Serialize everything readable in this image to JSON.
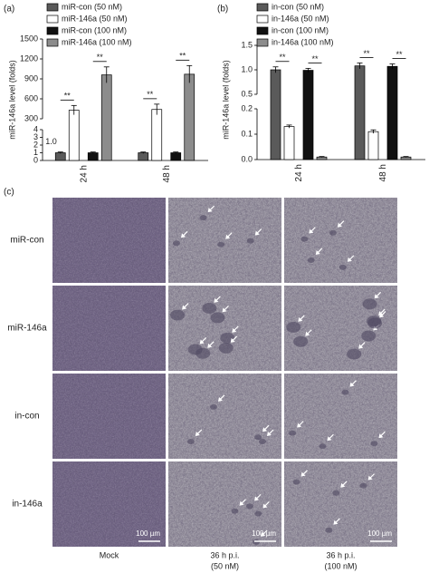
{
  "chart_data": [
    {
      "type": "bar",
      "panel_label": "(a)",
      "ylabel": "miR-146a level (folds)",
      "categories": [
        "24 h",
        "48 h"
      ],
      "y_segments": [
        {
          "ylim": [
            0,
            4
          ],
          "yticks": [
            0,
            1,
            2,
            3,
            4
          ]
        },
        {
          "ylim": [
            300,
            1500
          ],
          "yticks": [
            300,
            600,
            900,
            1200,
            1500
          ]
        }
      ],
      "series": [
        {
          "name": "miR-con (50 nM)",
          "color": "#5a5a5a",
          "values": [
            1,
            1
          ],
          "errors": [
            0.1,
            0.1
          ],
          "value_labels": [
            "1.0",
            null
          ]
        },
        {
          "name": "miR-146a (50 nM)",
          "color": "#ffffff",
          "values": [
            430,
            440
          ],
          "errors": [
            70,
            80
          ]
        },
        {
          "name": "miR-con (100 nM)",
          "color": "#111111",
          "values": [
            1,
            1
          ],
          "errors": [
            0.1,
            0.1
          ]
        },
        {
          "name": "miR-146a (100 nM)",
          "color": "#8c8c8c",
          "values": [
            960,
            970
          ],
          "errors": [
            120,
            130
          ]
        }
      ],
      "significance": [
        [
          "**",
          "**"
        ],
        [
          "**",
          "**"
        ]
      ],
      "legend": "top-left"
    },
    {
      "type": "bar",
      "panel_label": "(b)",
      "ylabel": "miR-146a level (folds)",
      "categories": [
        "24 h",
        "48 h"
      ],
      "y_segments": [
        {
          "ylim": [
            0,
            0.2
          ],
          "yticks": [
            {
              "value": 0,
              "label": "0.0"
            },
            0.1,
            0.2
          ]
        },
        {
          "ylim": [
            0.5,
            1.5
          ],
          "yticks": [
            0.5,
            {
              "value": 1,
              "label": "1.0"
            },
            1.5
          ]
        }
      ],
      "series": [
        {
          "name": "in-con (50 nM)",
          "color": "#5a5a5a",
          "values": [
            1.0,
            1.08
          ],
          "errors": [
            0.06,
            0.06
          ]
        },
        {
          "name": "in-146a (50 nM)",
          "color": "#ffffff",
          "values": [
            0.13,
            0.11
          ],
          "errors": [
            0.006,
            0.007
          ]
        },
        {
          "name": "in-con (100 nM)",
          "color": "#111111",
          "values": [
            0.99,
            1.07
          ],
          "errors": [
            0.04,
            0.05
          ]
        },
        {
          "name": "in-146a (100 nM)",
          "color": "#8c8c8c",
          "values": [
            0.01,
            0.01
          ],
          "errors": [
            0.002,
            0.002
          ]
        }
      ],
      "significance": [
        [
          "**",
          "**"
        ],
        [
          "**",
          "**"
        ]
      ],
      "legend": "top-left"
    }
  ],
  "micrographs": {
    "panel_label": "(c)",
    "rows": [
      "miR-con",
      "miR-146a",
      "in-con",
      "in-146a"
    ],
    "columns": [
      [
        "Mock"
      ],
      [
        "36 h p.i.",
        "(50 nM)"
      ],
      [
        "36 h p.i.",
        "(100 nM)"
      ]
    ],
    "scale_bars": [
      "100 µm",
      "100 µm",
      "100 µm"
    ]
  }
}
